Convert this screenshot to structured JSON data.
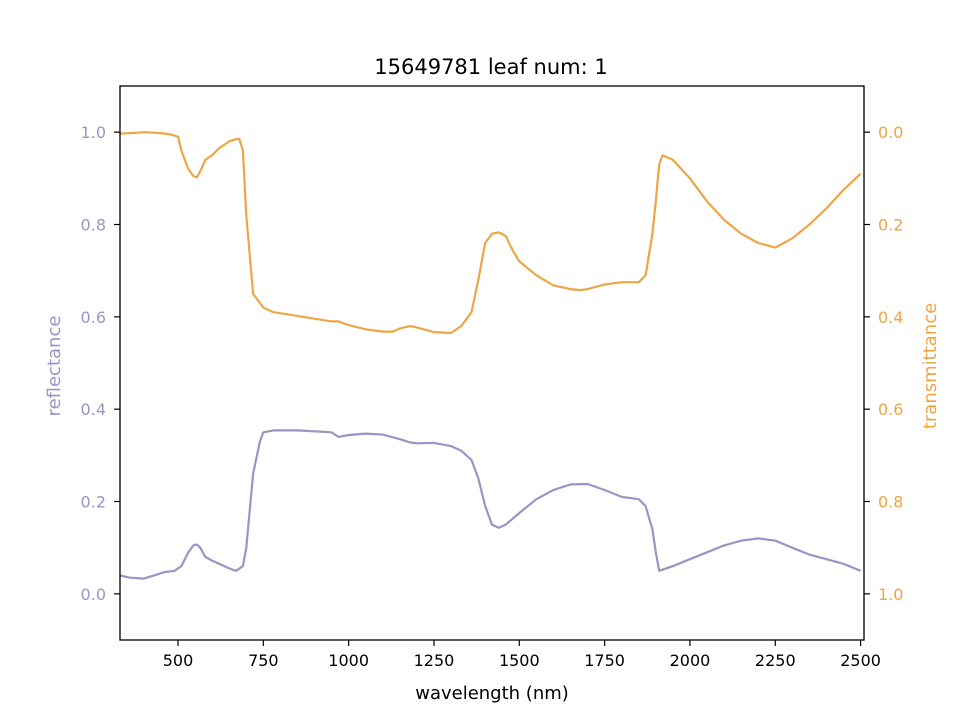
{
  "chart_data": {
    "type": "line",
    "title": "15649781 leaf num: 1",
    "xlabel": "wavelength (nm)",
    "ylabel_left": "reflectance",
    "ylabel_right": "transmittance",
    "xlim": [
      330,
      2510
    ],
    "ylim_left": [
      -0.1,
      1.1
    ],
    "ylim_right_inverted": [
      1.1,
      -0.1
    ],
    "x_ticks": [
      500,
      750,
      1000,
      1250,
      1500,
      1750,
      2000,
      2250,
      2500
    ],
    "y_ticks_left": [
      0.0,
      0.2,
      0.4,
      0.6,
      0.8,
      1.0
    ],
    "y_ticks_right": [
      0.0,
      0.2,
      0.4,
      0.6,
      0.8,
      1.0
    ],
    "grid": false,
    "colors": {
      "reflectance": "#9b94c5",
      "transmittance": "#eda645",
      "axis": "#000000"
    },
    "series": [
      {
        "axis": "left",
        "color": "#9b94c5",
        "x": [
          330,
          360,
          400,
          430,
          460,
          490,
          510,
          530,
          545,
          555,
          565,
          580,
          600,
          620,
          650,
          670,
          690,
          700,
          710,
          720,
          740,
          750,
          780,
          850,
          950,
          970,
          1000,
          1050,
          1100,
          1150,
          1180,
          1200,
          1250,
          1300,
          1330,
          1360,
          1380,
          1400,
          1420,
          1440,
          1460,
          1500,
          1550,
          1600,
          1650,
          1700,
          1750,
          1800,
          1850,
          1870,
          1890,
          1900,
          1910,
          1950,
          2000,
          2050,
          2100,
          2150,
          2200,
          2250,
          2300,
          2350,
          2400,
          2450,
          2500
        ],
        "y": [
          0.04,
          0.035,
          0.033,
          0.04,
          0.047,
          0.05,
          0.06,
          0.09,
          0.105,
          0.107,
          0.1,
          0.08,
          0.072,
          0.065,
          0.055,
          0.05,
          0.06,
          0.1,
          0.18,
          0.26,
          0.33,
          0.35,
          0.354,
          0.354,
          0.35,
          0.34,
          0.344,
          0.347,
          0.345,
          0.335,
          0.328,
          0.326,
          0.327,
          0.32,
          0.31,
          0.29,
          0.25,
          0.19,
          0.15,
          0.143,
          0.15,
          0.175,
          0.205,
          0.225,
          0.237,
          0.238,
          0.225,
          0.21,
          0.205,
          0.19,
          0.14,
          0.09,
          0.05,
          0.06,
          0.075,
          0.09,
          0.105,
          0.115,
          0.12,
          0.115,
          0.1,
          0.085,
          0.075,
          0.065,
          0.05
        ]
      },
      {
        "axis": "right",
        "color": "#eda645",
        "x": [
          330,
          360,
          400,
          450,
          480,
          500,
          510,
          530,
          545,
          555,
          565,
          580,
          600,
          620,
          650,
          670,
          680,
          690,
          700,
          720,
          750,
          780,
          850,
          950,
          970,
          1000,
          1050,
          1100,
          1130,
          1150,
          1180,
          1200,
          1250,
          1300,
          1330,
          1360,
          1380,
          1400,
          1420,
          1440,
          1460,
          1480,
          1500,
          1550,
          1600,
          1650,
          1680,
          1700,
          1750,
          1800,
          1850,
          1870,
          1890,
          1900,
          1910,
          1920,
          1950,
          2000,
          2050,
          2100,
          2150,
          2200,
          2250,
          2300,
          2350,
          2400,
          2450,
          2500
        ],
        "y": [
          0.003,
          0.002,
          0.0,
          0.002,
          0.005,
          0.01,
          0.04,
          0.08,
          0.095,
          0.098,
          0.085,
          0.06,
          0.05,
          0.035,
          0.02,
          0.015,
          0.015,
          0.04,
          0.18,
          0.35,
          0.38,
          0.39,
          0.398,
          0.41,
          0.41,
          0.418,
          0.427,
          0.432,
          0.432,
          0.425,
          0.42,
          0.423,
          0.433,
          0.435,
          0.42,
          0.39,
          0.32,
          0.24,
          0.22,
          0.217,
          0.225,
          0.255,
          0.28,
          0.31,
          0.332,
          0.34,
          0.342,
          0.34,
          0.33,
          0.325,
          0.325,
          0.31,
          0.22,
          0.15,
          0.07,
          0.05,
          0.06,
          0.1,
          0.15,
          0.19,
          0.22,
          0.24,
          0.25,
          0.23,
          0.2,
          0.165,
          0.125,
          0.09
        ]
      }
    ]
  }
}
